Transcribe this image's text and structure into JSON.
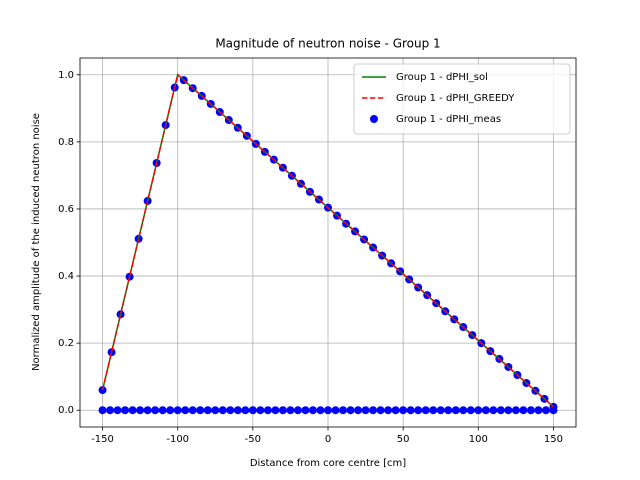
{
  "chart_data": {
    "type": "line",
    "title": "Magnitude of neutron noise - Group 1",
    "x_label": "Distance from core centre [cm]",
    "y_label": "Normalized amplitude of the induced neutron noise",
    "xlim": [
      -165,
      165
    ],
    "ylim": [
      -0.05,
      1.05
    ],
    "xticks": [
      -150,
      -100,
      -50,
      0,
      50,
      100,
      150
    ],
    "yticks": [
      {
        "value": 0,
        "label": "0.0"
      },
      {
        "value": 0.2,
        "label": "0.2"
      },
      {
        "value": 0.4,
        "label": "0.4"
      },
      {
        "value": 0.6,
        "label": "0.6"
      },
      {
        "value": 0.8,
        "label": "0.8"
      },
      {
        "value": 1.0,
        "label": "1.0"
      }
    ],
    "grid": true,
    "legend": "upper right",
    "series": [
      {
        "name": "Group 1 - dPHI_sol",
        "color": "#008000",
        "style": "solid",
        "x": [
          -150,
          -100,
          150
        ],
        "values": [
          0.06,
          1.0,
          0.01
        ]
      },
      {
        "name": "Group 1 - dPHI_GREEDY",
        "color": "#ff0000",
        "style": "dashed",
        "x": [
          -150,
          -100,
          150
        ],
        "values": [
          0.06,
          1.0,
          0.01
        ]
      },
      {
        "name": "Group 1 - dPHI_meas",
        "color": "#0000ff",
        "style": "scatter",
        "x": [
          -150,
          -144,
          -138,
          -132,
          -126,
          -120,
          -114,
          -108,
          -102,
          -96,
          -90,
          -84,
          -78,
          -72,
          -66,
          -60,
          -54,
          -48,
          -42,
          -36,
          -30,
          -24,
          -18,
          -12,
          -6,
          0,
          6,
          12,
          18,
          24,
          30,
          36,
          42,
          48,
          54,
          60,
          66,
          72,
          78,
          84,
          90,
          96,
          102,
          108,
          114,
          120,
          126,
          132,
          138,
          144,
          150,
          -150,
          -145,
          -140,
          -135,
          -130,
          -125,
          -120,
          -115,
          -110,
          -105,
          -100,
          -95,
          -90,
          -85,
          -80,
          -75,
          -70,
          -65,
          -60,
          -55,
          -50,
          -45,
          -40,
          -35,
          -30,
          -25,
          -20,
          -15,
          -10,
          -5,
          0,
          5,
          10,
          15,
          20,
          25,
          30,
          35,
          40,
          45,
          50,
          55,
          60,
          65,
          70,
          75,
          80,
          85,
          90,
          95,
          100,
          105,
          110,
          115,
          120,
          125,
          130,
          135,
          140,
          145,
          150
        ],
        "values": [
          0.06,
          0.173,
          0.286,
          0.398,
          0.511,
          0.624,
          0.737,
          0.85,
          0.962,
          0.984,
          0.96,
          0.937,
          0.913,
          0.889,
          0.865,
          0.842,
          0.818,
          0.794,
          0.77,
          0.747,
          0.723,
          0.699,
          0.675,
          0.651,
          0.628,
          0.604,
          0.58,
          0.556,
          0.533,
          0.509,
          0.485,
          0.461,
          0.438,
          0.414,
          0.39,
          0.366,
          0.343,
          0.319,
          0.295,
          0.271,
          0.248,
          0.224,
          0.2,
          0.176,
          0.153,
          0.129,
          0.105,
          0.081,
          0.058,
          0.034,
          0.01,
          0,
          0,
          0,
          0,
          0,
          0,
          0,
          0,
          0,
          0,
          0,
          0,
          0,
          0,
          0,
          0,
          0,
          0,
          0,
          0,
          0,
          0,
          0,
          0,
          0,
          0,
          0,
          0,
          0,
          0,
          0,
          0,
          0,
          0,
          0,
          0,
          0,
          0,
          0,
          0,
          0,
          0,
          0,
          0,
          0,
          0,
          0,
          0,
          0,
          0,
          0,
          0,
          0,
          0,
          0,
          0,
          0,
          0,
          0,
          0,
          0
        ]
      }
    ]
  }
}
